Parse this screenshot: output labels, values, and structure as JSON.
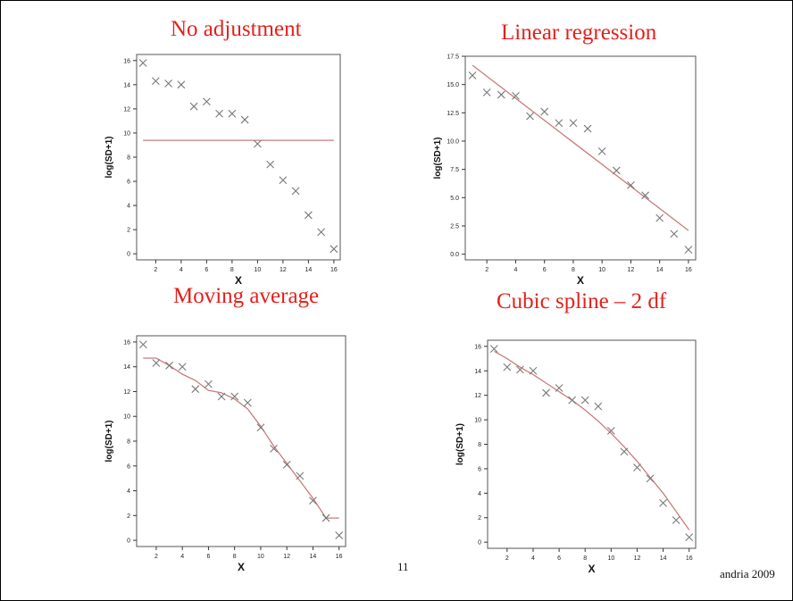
{
  "slide": {
    "page_number": "11",
    "author": "andria 2009"
  },
  "chart_data": [
    {
      "type": "scatter",
      "title": "No adjustment",
      "xlabel": "X",
      "ylabel": "log(SD+1)",
      "xlim": [
        0.5,
        16.5
      ],
      "ylim": [
        -0.5,
        16.5
      ],
      "yticks": [
        "0",
        "2",
        "4",
        "6",
        "8",
        "10",
        "12",
        "14",
        "16"
      ],
      "xticks": [
        "2",
        "4",
        "6",
        "8",
        "10",
        "12",
        "14",
        "16"
      ],
      "series": [
        {
          "kind": "points",
          "x": [
            1,
            2,
            3,
            4,
            5,
            6,
            7,
            8,
            9,
            10,
            11,
            12,
            13,
            14,
            15,
            16
          ],
          "y": [
            15.8,
            14.3,
            14.1,
            14.0,
            12.2,
            12.6,
            11.6,
            11.6,
            11.1,
            9.1,
            7.4,
            6.1,
            5.2,
            3.2,
            1.8,
            0.4
          ]
        },
        {
          "kind": "line",
          "x": [
            1,
            16
          ],
          "y": [
            9.4,
            9.4
          ]
        }
      ]
    },
    {
      "type": "scatter",
      "title": "Linear  regression",
      "xlabel": "X",
      "ylabel": "log(SD+1)",
      "xlim": [
        0.5,
        16.5
      ],
      "ylim": [
        -0.5,
        17.5
      ],
      "yticks": [
        "0.0",
        "2.5",
        "5.0",
        "7.5",
        "10.0",
        "12.5",
        "15.0",
        "17.5"
      ],
      "xticks": [
        "2",
        "4",
        "6",
        "8",
        "10",
        "12",
        "14",
        "16"
      ],
      "series": [
        {
          "kind": "points",
          "x": [
            1,
            2,
            3,
            4,
            5,
            6,
            7,
            8,
            9,
            10,
            11,
            12,
            13,
            14,
            15,
            16
          ],
          "y": [
            15.8,
            14.3,
            14.1,
            14.0,
            12.2,
            12.6,
            11.6,
            11.6,
            11.1,
            9.1,
            7.4,
            6.1,
            5.2,
            3.2,
            1.8,
            0.4
          ]
        },
        {
          "kind": "line",
          "x": [
            1,
            16
          ],
          "y": [
            16.7,
            2.1
          ]
        }
      ]
    },
    {
      "type": "scatter",
      "title": "Moving average",
      "xlabel": "X",
      "ylabel": "log(SD+1)",
      "xlim": [
        0.5,
        16.5
      ],
      "ylim": [
        -0.5,
        16.5
      ],
      "yticks": [
        "0",
        "2",
        "4",
        "6",
        "8",
        "10",
        "12",
        "14",
        "16"
      ],
      "xticks": [
        "2",
        "4",
        "6",
        "8",
        "10",
        "12",
        "14",
        "16"
      ],
      "series": [
        {
          "kind": "points",
          "x": [
            1,
            2,
            3,
            4,
            5,
            6,
            7,
            8,
            9,
            10,
            11,
            12,
            13,
            14,
            15,
            16
          ],
          "y": [
            15.8,
            14.3,
            14.1,
            14.0,
            12.2,
            12.6,
            11.6,
            11.6,
            11.1,
            9.1,
            7.4,
            6.1,
            5.2,
            3.2,
            1.8,
            0.4
          ]
        },
        {
          "kind": "line",
          "x": [
            1,
            2,
            3,
            4,
            5,
            6,
            7,
            8,
            9,
            10,
            11,
            12,
            13,
            14,
            15,
            16
          ],
          "y": [
            14.7,
            14.7,
            14.1,
            13.4,
            12.9,
            12.1,
            11.9,
            11.4,
            10.6,
            9.2,
            7.6,
            6.2,
            4.8,
            3.4,
            1.8,
            1.8
          ]
        }
      ]
    },
    {
      "type": "scatter",
      "title": "Cubic spline – 2 df",
      "xlabel": "X",
      "ylabel": "log(SD+1)",
      "xlim": [
        0.5,
        16.5
      ],
      "ylim": [
        -0.5,
        16.5
      ],
      "yticks": [
        "0",
        "2",
        "4",
        "6",
        "8",
        "10",
        "12",
        "14",
        "16"
      ],
      "xticks": [
        "2",
        "4",
        "6",
        "8",
        "10",
        "12",
        "14",
        "16"
      ],
      "series": [
        {
          "kind": "points",
          "x": [
            1,
            2,
            3,
            4,
            5,
            6,
            7,
            8,
            9,
            10,
            11,
            12,
            13,
            14,
            15,
            16
          ],
          "y": [
            15.8,
            14.3,
            14.1,
            14.0,
            12.2,
            12.6,
            11.6,
            11.6,
            11.1,
            9.1,
            7.4,
            6.1,
            5.2,
            3.2,
            1.8,
            0.4
          ]
        },
        {
          "kind": "line",
          "x": [
            1,
            2,
            3,
            4,
            5,
            6,
            7,
            8,
            9,
            10,
            11,
            12,
            13,
            14,
            15,
            16
          ],
          "y": [
            15.6,
            15.0,
            14.3,
            13.7,
            13.0,
            12.3,
            11.6,
            10.8,
            9.9,
            8.9,
            7.8,
            6.6,
            5.3,
            4.0,
            2.5,
            1.0
          ]
        }
      ]
    }
  ]
}
